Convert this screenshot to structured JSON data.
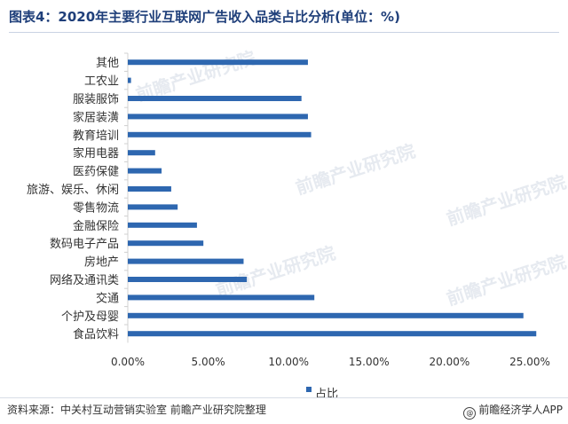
{
  "title": "图表4：2020年主要行业互联网广告收入品类占比分析(单位：%)",
  "source": "资料来源：中关村互动营销实验室 前瞻产业研究院整理",
  "credit": "@前瞻经济学人APP",
  "watermark": "前瞻产业研究院",
  "colors": {
    "bar": "#2e67b0",
    "title": "#1f3f7a"
  },
  "chart_data": {
    "type": "bar",
    "orientation": "horizontal",
    "categories": [
      "其他",
      "工农业",
      "服装服饰",
      "家居装潢",
      "教育培训",
      "家用电器",
      "医药保健",
      "旅游、娱乐、休闲",
      "零售物流",
      "金融保险",
      "数码电子产品",
      "房地产",
      "网络及通讯类",
      "交通",
      "个护及母婴",
      "食品饮料"
    ],
    "series": [
      {
        "name": "占比",
        "values": [
          11.2,
          0.2,
          10.8,
          11.2,
          11.4,
          1.7,
          2.1,
          2.7,
          3.1,
          4.3,
          4.7,
          7.2,
          7.4,
          11.6,
          24.6,
          25.4
        ]
      }
    ],
    "xlim": [
      0,
      25
    ],
    "xticks": [
      0,
      5,
      10,
      15,
      20,
      25
    ],
    "xtick_labels": [
      "0.00%",
      "5.00%",
      "10.00%",
      "15.00%",
      "20.00%",
      "25.00%"
    ],
    "grid": false,
    "legend": "bottom"
  }
}
